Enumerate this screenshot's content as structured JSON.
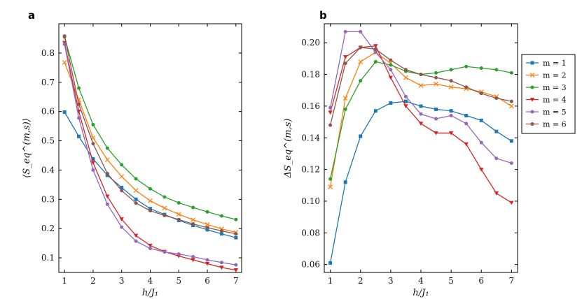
{
  "chart_data": [
    {
      "panel": "a",
      "type": "line",
      "x": [
        1,
        1.5,
        2,
        2.5,
        3,
        3.5,
        4,
        4.5,
        5,
        5.5,
        6,
        6.5,
        7
      ],
      "xlabel": "h/J₁",
      "ylabel": "⟨S_eq^(m,s)⟩",
      "xlim": [
        0.8,
        7.2
      ],
      "ylim": [
        0.05,
        0.9
      ],
      "xticks": [
        1,
        2,
        3,
        4,
        5,
        6,
        7
      ],
      "yticks": [
        0.1,
        0.2,
        0.3,
        0.4,
        0.5,
        0.6,
        0.7,
        0.8
      ],
      "series": [
        {
          "name": "m = 1",
          "color": "#1f77b4",
          "marker": "square",
          "values": [
            0.598,
            0.515,
            0.438,
            0.382,
            0.34,
            0.3,
            0.268,
            0.248,
            0.228,
            0.211,
            0.196,
            0.182,
            0.169
          ]
        },
        {
          "name": "m = 2",
          "color": "#ff7f0e",
          "marker": "x",
          "values": [
            0.768,
            0.64,
            0.51,
            0.435,
            0.378,
            0.33,
            0.295,
            0.27,
            0.249,
            0.23,
            0.214,
            0.199,
            0.187
          ]
        },
        {
          "name": "m = 3",
          "color": "#2ca02c",
          "marker": "circle",
          "values": [
            0.855,
            0.68,
            0.555,
            0.475,
            0.418,
            0.37,
            0.336,
            0.308,
            0.288,
            0.272,
            0.257,
            0.243,
            0.231
          ]
        },
        {
          "name": "m = 4",
          "color": "#d62728",
          "marker": "triangle-down",
          "values": [
            0.835,
            0.6,
            0.425,
            0.31,
            0.232,
            0.176,
            0.142,
            0.121,
            0.106,
            0.093,
            0.08,
            0.067,
            0.058
          ]
        },
        {
          "name": "m = 5",
          "color": "#9467bd",
          "marker": "circle",
          "values": [
            0.83,
            0.578,
            0.4,
            0.283,
            0.205,
            0.157,
            0.132,
            0.12,
            0.113,
            0.104,
            0.093,
            0.084,
            0.076
          ]
        },
        {
          "name": "m = 6",
          "color": "#8c564b",
          "marker": "circle",
          "values": [
            0.858,
            0.625,
            0.49,
            0.388,
            0.33,
            0.287,
            0.261,
            0.245,
            0.231,
            0.216,
            0.203,
            0.192,
            0.182
          ]
        }
      ]
    },
    {
      "panel": "b",
      "type": "line",
      "x": [
        1,
        1.5,
        2,
        2.5,
        3,
        3.5,
        4,
        4.5,
        5,
        5.5,
        6,
        6.5,
        7
      ],
      "xlabel": "h/J₁",
      "ylabel": "ΔS_eq^(m,s)",
      "xlim": [
        0.8,
        7.2
      ],
      "ylim": [
        0.055,
        0.212
      ],
      "xticks": [
        1,
        2,
        3,
        4,
        5,
        6,
        7
      ],
      "yticks": [
        0.06,
        0.08,
        0.1,
        0.12,
        0.14,
        0.16,
        0.18,
        0.2
      ],
      "legend_position": "outside-right",
      "series": [
        {
          "name": "m = 1",
          "color": "#1f77b4",
          "marker": "square",
          "values": [
            0.061,
            0.112,
            0.141,
            0.157,
            0.162,
            0.163,
            0.16,
            0.158,
            0.157,
            0.154,
            0.151,
            0.144,
            0.138
          ]
        },
        {
          "name": "m = 2",
          "color": "#ff7f0e",
          "marker": "x",
          "values": [
            0.109,
            0.165,
            0.188,
            0.194,
            0.187,
            0.178,
            0.173,
            0.174,
            0.172,
            0.171,
            0.169,
            0.166,
            0.16
          ]
        },
        {
          "name": "m = 3",
          "color": "#2ca02c",
          "marker": "circle",
          "values": [
            0.114,
            0.158,
            0.176,
            0.188,
            0.186,
            0.182,
            0.18,
            0.181,
            0.183,
            0.185,
            0.184,
            0.183,
            0.181
          ]
        },
        {
          "name": "m = 4",
          "color": "#d62728",
          "marker": "triangle-down",
          "values": [
            0.156,
            0.191,
            0.197,
            0.198,
            0.178,
            0.16,
            0.149,
            0.143,
            0.143,
            0.136,
            0.12,
            0.105,
            0.099
          ]
        },
        {
          "name": "m = 5",
          "color": "#9467bd",
          "marker": "circle",
          "values": [
            0.159,
            0.207,
            0.207,
            0.194,
            0.183,
            0.166,
            0.155,
            0.152,
            0.154,
            0.149,
            0.137,
            0.127,
            0.124
          ]
        },
        {
          "name": "m = 6",
          "color": "#8c564b",
          "marker": "circle",
          "values": [
            0.148,
            0.187,
            0.197,
            0.196,
            0.189,
            0.183,
            0.18,
            0.178,
            0.176,
            0.172,
            0.168,
            0.165,
            0.163
          ]
        }
      ]
    }
  ]
}
